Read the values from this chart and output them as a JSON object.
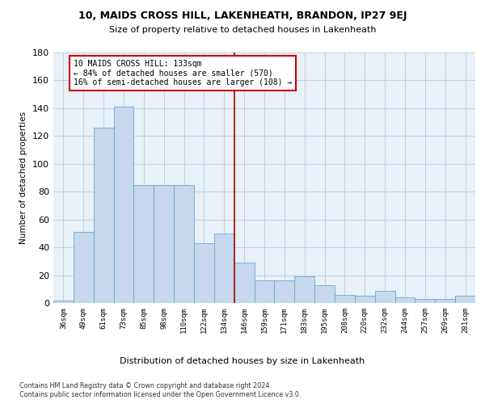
{
  "title1": "10, MAIDS CROSS HILL, LAKENHEATH, BRANDON, IP27 9EJ",
  "title2": "Size of property relative to detached houses in Lakenheath",
  "xlabel": "Distribution of detached houses by size in Lakenheath",
  "ylabel": "Number of detached properties",
  "footnote1": "Contains HM Land Registry data © Crown copyright and database right 2024.",
  "footnote2": "Contains public sector information licensed under the Open Government Licence v3.0.",
  "annotation_line1": "10 MAIDS CROSS HILL: 133sqm",
  "annotation_line2": "← 84% of detached houses are smaller (570)",
  "annotation_line3": "16% of semi-detached houses are larger (108) →",
  "categories": [
    "36sqm",
    "49sqm",
    "61sqm",
    "73sqm",
    "85sqm",
    "98sqm",
    "110sqm",
    "122sqm",
    "134sqm",
    "146sqm",
    "159sqm",
    "171sqm",
    "183sqm",
    "195sqm",
    "208sqm",
    "220sqm",
    "232sqm",
    "244sqm",
    "257sqm",
    "269sqm",
    "281sqm"
  ],
  "values": [
    2,
    51,
    126,
    141,
    85,
    85,
    85,
    43,
    50,
    29,
    16,
    16,
    19,
    13,
    6,
    5,
    9,
    4,
    3,
    3,
    5
  ],
  "bar_color": "#c5d8ed",
  "bar_edge_color": "#6aaad4",
  "vline_x_index": 8,
  "vline_color": "#aa0000",
  "annotation_box_color": "#cc0000",
  "bg_plot_color": "#e8f0f8",
  "grid_color": "#c0cfe0",
  "ylim_max": 180,
  "yticks": [
    0,
    20,
    40,
    60,
    80,
    100,
    120,
    140,
    160,
    180
  ]
}
